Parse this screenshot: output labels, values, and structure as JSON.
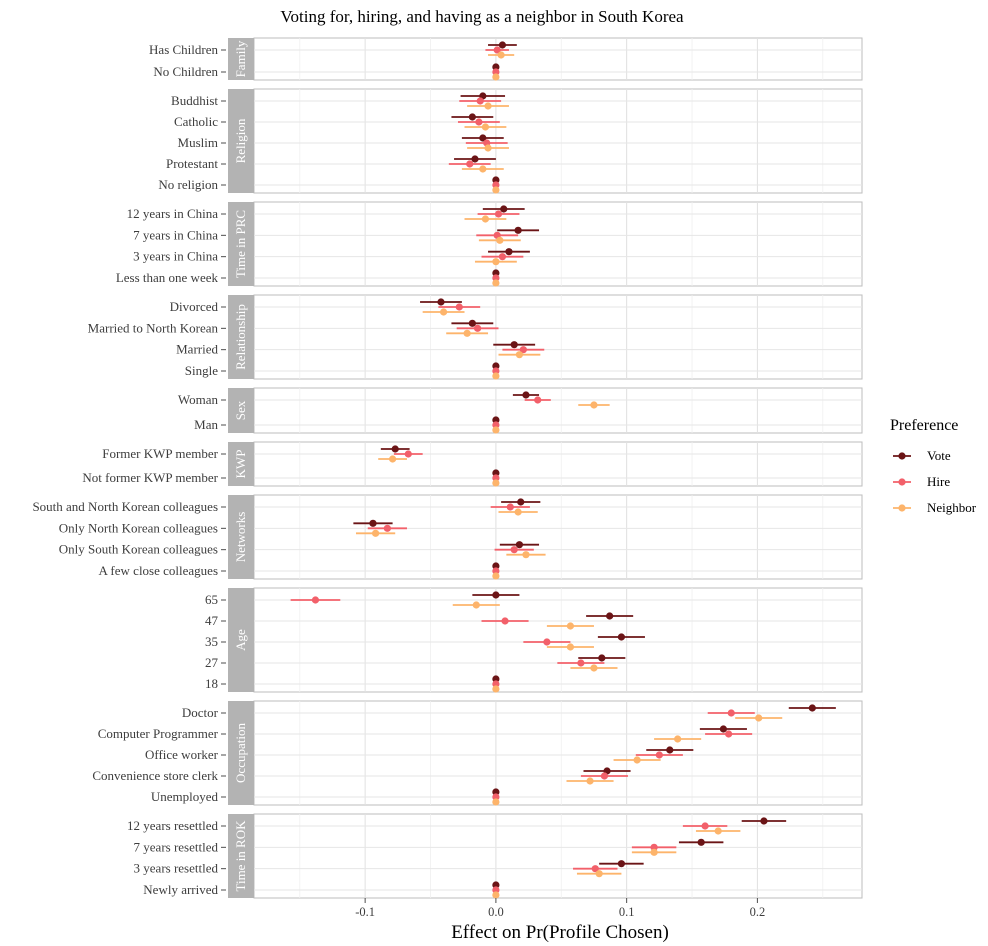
{
  "chart_data": {
    "type": "scatter",
    "subtype": "coefficient-plot-with-confidence-intervals",
    "title": "Voting for, hiring, and having as a neighbor in South Korea",
    "xlabel": "Effect on Pr(Profile Chosen)",
    "ylabel": "",
    "xlim": [
      -0.185,
      0.28
    ],
    "x_ticks": [
      -0.1,
      0.0,
      0.1,
      0.2
    ],
    "x_tick_labels": [
      "-0.1",
      "0.0",
      "0.1",
      "0.2"
    ],
    "grid": true,
    "legend": {
      "title": "Preference",
      "position": "right",
      "entries": [
        "Vote",
        "Hire",
        "Neighbor"
      ]
    },
    "series_colors": {
      "Vote": "#6b1416",
      "Hire": "#f2606a",
      "Neighbor": "#fdb46b"
    },
    "facets": [
      {
        "strip": "Family",
        "levels": [
          {
            "label": "Has Children",
            "estimates": {
              "Vote": [
                0.005,
                -0.006,
                0.016
              ],
              "Hire": [
                0.001,
                -0.008,
                0.01
              ],
              "Neighbor": [
                0.004,
                -0.006,
                0.014
              ]
            }
          },
          {
            "label": "No Children",
            "estimates": {
              "Vote": [
                0,
                0,
                0
              ],
              "Hire": [
                0,
                0,
                0
              ],
              "Neighbor": [
                0,
                0,
                0
              ]
            }
          }
        ]
      },
      {
        "strip": "Religion",
        "levels": [
          {
            "label": "Buddhist",
            "estimates": {
              "Vote": [
                -0.01,
                -0.027,
                0.007
              ],
              "Hire": [
                -0.012,
                -0.028,
                0.004
              ],
              "Neighbor": [
                -0.006,
                -0.022,
                0.01
              ]
            }
          },
          {
            "label": "Catholic",
            "estimates": {
              "Vote": [
                -0.018,
                -0.034,
                -0.002
              ],
              "Hire": [
                -0.013,
                -0.029,
                0.003
              ],
              "Neighbor": [
                -0.008,
                -0.024,
                0.008
              ]
            }
          },
          {
            "label": "Muslim",
            "estimates": {
              "Vote": [
                -0.01,
                -0.026,
                0.006
              ],
              "Hire": [
                -0.007,
                -0.023,
                0.009
              ],
              "Neighbor": [
                -0.006,
                -0.022,
                0.01
              ]
            }
          },
          {
            "label": "Protestant",
            "estimates": {
              "Vote": [
                -0.016,
                -0.032,
                0.0
              ],
              "Hire": [
                -0.02,
                -0.036,
                -0.004
              ],
              "Neighbor": [
                -0.01,
                -0.026,
                0.006
              ]
            }
          },
          {
            "label": "No religion",
            "estimates": {
              "Vote": [
                0,
                0,
                0
              ],
              "Hire": [
                0,
                0,
                0
              ],
              "Neighbor": [
                0,
                0,
                0
              ]
            }
          }
        ]
      },
      {
        "strip": "Time in PRC",
        "levels": [
          {
            "label": "12 years in China",
            "estimates": {
              "Vote": [
                0.006,
                -0.01,
                0.022
              ],
              "Hire": [
                0.002,
                -0.014,
                0.018
              ],
              "Neighbor": [
                -0.008,
                -0.024,
                0.008
              ]
            }
          },
          {
            "label": "7 years in China",
            "estimates": {
              "Vote": [
                0.017,
                0.001,
                0.033
              ],
              "Hire": [
                0.001,
                -0.015,
                0.017
              ],
              "Neighbor": [
                0.003,
                -0.013,
                0.019
              ]
            }
          },
          {
            "label": "3 years in China",
            "estimates": {
              "Vote": [
                0.01,
                -0.006,
                0.026
              ],
              "Hire": [
                0.005,
                -0.011,
                0.021
              ],
              "Neighbor": [
                0.0,
                -0.016,
                0.016
              ]
            }
          },
          {
            "label": "Less than one week",
            "estimates": {
              "Vote": [
                0,
                0,
                0
              ],
              "Hire": [
                0,
                0,
                0
              ],
              "Neighbor": [
                0,
                0,
                0
              ]
            }
          }
        ]
      },
      {
        "strip": "Relationship",
        "levels": [
          {
            "label": "Divorced",
            "estimates": {
              "Vote": [
                -0.042,
                -0.058,
                -0.026
              ],
              "Hire": [
                -0.028,
                -0.044,
                -0.012
              ],
              "Neighbor": [
                -0.04,
                -0.056,
                -0.024
              ]
            }
          },
          {
            "label": "Married to North Korean",
            "estimates": {
              "Vote": [
                -0.018,
                -0.034,
                -0.002
              ],
              "Hire": [
                -0.014,
                -0.03,
                0.002
              ],
              "Neighbor": [
                -0.022,
                -0.038,
                -0.006
              ]
            }
          },
          {
            "label": "Married",
            "estimates": {
              "Vote": [
                0.014,
                -0.002,
                0.03
              ],
              "Hire": [
                0.021,
                0.005,
                0.037
              ],
              "Neighbor": [
                0.018,
                0.002,
                0.034
              ]
            }
          },
          {
            "label": "Single",
            "estimates": {
              "Vote": [
                0,
                0,
                0
              ],
              "Hire": [
                0,
                0,
                0
              ],
              "Neighbor": [
                0,
                0,
                0
              ]
            }
          }
        ]
      },
      {
        "strip": "Sex",
        "levels": [
          {
            "label": "Woman",
            "estimates": {
              "Vote": [
                0.023,
                0.013,
                0.033
              ],
              "Hire": [
                0.032,
                0.022,
                0.042
              ],
              "Neighbor": [
                0.075,
                0.063,
                0.087
              ]
            }
          },
          {
            "label": "Man",
            "estimates": {
              "Vote": [
                0,
                0,
                0
              ],
              "Hire": [
                0,
                0,
                0
              ],
              "Neighbor": [
                0,
                0,
                0
              ]
            }
          }
        ]
      },
      {
        "strip": "KWP",
        "levels": [
          {
            "label": "Former KWP member",
            "estimates": {
              "Vote": [
                -0.077,
                -0.088,
                -0.066
              ],
              "Hire": [
                -0.067,
                -0.078,
                -0.056
              ],
              "Neighbor": [
                -0.079,
                -0.09,
                -0.068
              ]
            }
          },
          {
            "label": "Not former KWP member",
            "estimates": {
              "Vote": [
                0,
                0,
                0
              ],
              "Hire": [
                0,
                0,
                0
              ],
              "Neighbor": [
                0,
                0,
                0
              ]
            }
          }
        ]
      },
      {
        "strip": "Networks",
        "levels": [
          {
            "label": "South and North Korean colleagues",
            "estimates": {
              "Vote": [
                0.019,
                0.004,
                0.034
              ],
              "Hire": [
                0.011,
                -0.004,
                0.026
              ],
              "Neighbor": [
                0.017,
                0.002,
                0.032
              ]
            }
          },
          {
            "label": "Only North Korean colleagues",
            "estimates": {
              "Vote": [
                -0.094,
                -0.109,
                -0.079
              ],
              "Hire": [
                -0.083,
                -0.098,
                -0.068
              ],
              "Neighbor": [
                -0.092,
                -0.107,
                -0.077
              ]
            }
          },
          {
            "label": "Only South Korean colleagues",
            "estimates": {
              "Vote": [
                0.018,
                0.003,
                0.033
              ],
              "Hire": [
                0.014,
                -0.001,
                0.029
              ],
              "Neighbor": [
                0.023,
                0.008,
                0.038
              ]
            }
          },
          {
            "label": "A few close colleagues",
            "estimates": {
              "Vote": [
                0,
                0,
                0
              ],
              "Hire": [
                0,
                0,
                0
              ],
              "Neighbor": [
                0,
                0,
                0
              ]
            }
          }
        ]
      },
      {
        "strip": "Age",
        "levels": [
          {
            "label": "65",
            "estimates": {
              "Vote": [
                0.0,
                -0.018,
                0.018
              ],
              "Hire": [
                -0.138,
                -0.157,
                -0.119
              ],
              "Neighbor": [
                -0.015,
                -0.033,
                0.003
              ]
            }
          },
          {
            "label": "47",
            "estimates": {
              "Vote": [
                0.087,
                0.069,
                0.105
              ],
              "Hire": [
                0.007,
                -0.011,
                0.025
              ],
              "Neighbor": [
                0.057,
                0.039,
                0.075
              ]
            }
          },
          {
            "label": "35",
            "estimates": {
              "Vote": [
                0.096,
                0.078,
                0.114
              ],
              "Hire": [
                0.039,
                0.021,
                0.057
              ],
              "Neighbor": [
                0.057,
                0.039,
                0.075
              ]
            }
          },
          {
            "label": "27",
            "estimates": {
              "Vote": [
                0.081,
                0.063,
                0.099
              ],
              "Hire": [
                0.065,
                0.047,
                0.083
              ],
              "Neighbor": [
                0.075,
                0.057,
                0.093
              ]
            }
          },
          {
            "label": "18",
            "estimates": {
              "Vote": [
                0,
                0,
                0
              ],
              "Hire": [
                0,
                0,
                0
              ],
              "Neighbor": [
                0,
                0,
                0
              ]
            }
          }
        ]
      },
      {
        "strip": "Occupation",
        "levels": [
          {
            "label": "Doctor",
            "estimates": {
              "Vote": [
                0.242,
                0.224,
                0.26
              ],
              "Hire": [
                0.18,
                0.162,
                0.198
              ],
              "Neighbor": [
                0.201,
                0.183,
                0.219
              ]
            }
          },
          {
            "label": "Computer Programmer",
            "estimates": {
              "Vote": [
                0.174,
                0.156,
                0.192
              ],
              "Hire": [
                0.178,
                0.16,
                0.196
              ],
              "Neighbor": [
                0.139,
                0.121,
                0.157
              ]
            }
          },
          {
            "label": "Office worker",
            "estimates": {
              "Vote": [
                0.133,
                0.115,
                0.151
              ],
              "Hire": [
                0.125,
                0.107,
                0.143
              ],
              "Neighbor": [
                0.108,
                0.09,
                0.126
              ]
            }
          },
          {
            "label": "Convenience store clerk",
            "estimates": {
              "Vote": [
                0.085,
                0.067,
                0.103
              ],
              "Hire": [
                0.083,
                0.065,
                0.101
              ],
              "Neighbor": [
                0.072,
                0.054,
                0.09
              ]
            }
          },
          {
            "label": "Unemployed",
            "estimates": {
              "Vote": [
                0,
                0,
                0
              ],
              "Hire": [
                0,
                0,
                0
              ],
              "Neighbor": [
                0,
                0,
                0
              ]
            }
          }
        ]
      },
      {
        "strip": "Time in ROK",
        "levels": [
          {
            "label": "12 years resettled",
            "estimates": {
              "Vote": [
                0.205,
                0.188,
                0.222
              ],
              "Hire": [
                0.16,
                0.143,
                0.177
              ],
              "Neighbor": [
                0.17,
                0.153,
                0.187
              ]
            }
          },
          {
            "label": "7 years resettled",
            "estimates": {
              "Vote": [
                0.157,
                0.14,
                0.174
              ],
              "Hire": [
                0.121,
                0.104,
                0.138
              ],
              "Neighbor": [
                0.121,
                0.104,
                0.138
              ]
            }
          },
          {
            "label": "3 years resettled",
            "estimates": {
              "Vote": [
                0.096,
                0.079,
                0.113
              ],
              "Hire": [
                0.076,
                0.059,
                0.093
              ],
              "Neighbor": [
                0.079,
                0.062,
                0.096
              ]
            }
          },
          {
            "label": "Newly arrived",
            "estimates": {
              "Vote": [
                0,
                0,
                0
              ],
              "Hire": [
                0,
                0,
                0
              ],
              "Neighbor": [
                0,
                0,
                0
              ]
            }
          }
        ]
      }
    ]
  }
}
